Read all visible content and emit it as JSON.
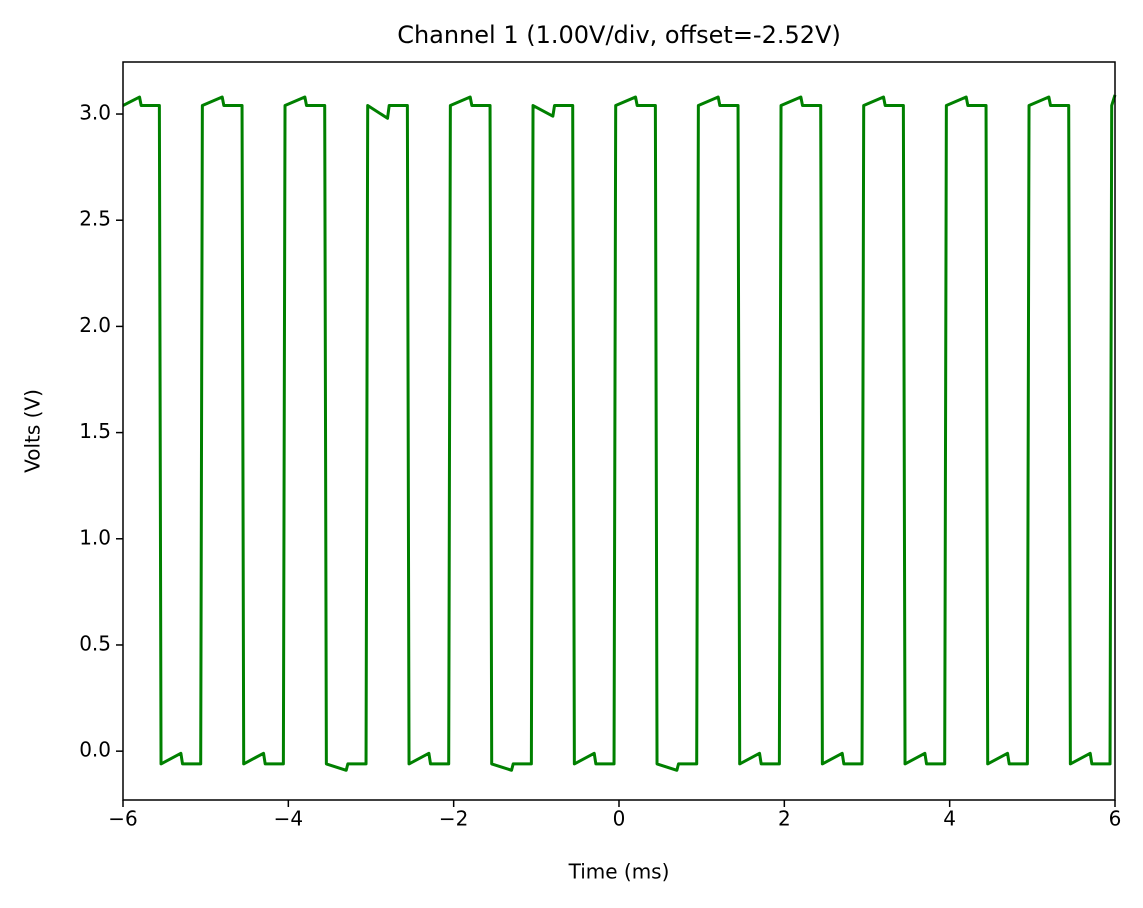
{
  "chart_data": {
    "type": "line",
    "title": "Channel 1 (1.00V/div, offset=-2.52V)",
    "xlabel": "Time (ms)",
    "ylabel": "Volts (V)",
    "x": [
      -6,
      -5.8,
      -5.78,
      -5.56,
      -5.54,
      -5.3,
      -5.28,
      -5.06,
      -5.04,
      -4.8,
      -4.78,
      -4.56,
      -4.54,
      -4.3,
      -4.28,
      -4.06,
      -4.04,
      -3.8,
      -3.78,
      -3.56,
      -3.54,
      -3.3,
      -3.28,
      -3.06,
      -3.04,
      -2.8,
      -2.78,
      -2.56,
      -2.54,
      -2.3,
      -2.28,
      -2.06,
      -2.04,
      -1.8,
      -1.78,
      -1.56,
      -1.54,
      -1.3,
      -1.28,
      -1.06,
      -1.04,
      -0.8,
      -0.78,
      -0.56,
      -0.54,
      -0.3,
      -0.28,
      -0.06,
      -0.04,
      0.2,
      0.22,
      0.44,
      0.46,
      0.7,
      0.72,
      0.94,
      0.96,
      1.2,
      1.22,
      1.44,
      1.46,
      1.7,
      1.72,
      1.94,
      1.96,
      2.2,
      2.22,
      2.44,
      2.46,
      2.7,
      2.72,
      2.94,
      2.96,
      3.2,
      3.22,
      3.44,
      3.46,
      3.7,
      3.72,
      3.94,
      3.96,
      4.2,
      4.22,
      4.44,
      4.46,
      4.7,
      4.72,
      4.94,
      4.96,
      5.2,
      5.22,
      5.44,
      5.46,
      5.7,
      5.72,
      5.94,
      5.96,
      6.0
    ],
    "series": [
      {
        "name": "Channel 1",
        "color": "#008000",
        "values": [
          3.04,
          3.08,
          3.04,
          3.04,
          -0.06,
          -0.01,
          -0.06,
          -0.06,
          3.04,
          3.08,
          3.04,
          3.04,
          -0.06,
          -0.01,
          -0.06,
          -0.06,
          3.04,
          3.08,
          3.04,
          3.04,
          -0.06,
          -0.09,
          -0.06,
          -0.06,
          3.04,
          2.98,
          3.04,
          3.04,
          -0.06,
          -0.01,
          -0.06,
          -0.06,
          3.04,
          3.08,
          3.04,
          3.04,
          -0.06,
          -0.09,
          -0.06,
          -0.06,
          3.04,
          2.99,
          3.04,
          3.04,
          -0.06,
          -0.01,
          -0.06,
          -0.06,
          3.04,
          3.08,
          3.04,
          3.04,
          -0.06,
          -0.09,
          -0.06,
          -0.06,
          3.04,
          3.08,
          3.04,
          3.04,
          -0.06,
          -0.01,
          -0.06,
          -0.06,
          3.04,
          3.08,
          3.04,
          3.04,
          -0.06,
          -0.01,
          -0.06,
          -0.06,
          3.04,
          3.08,
          3.04,
          3.04,
          -0.06,
          -0.01,
          -0.06,
          -0.06,
          3.04,
          3.08,
          3.04,
          3.04,
          -0.06,
          -0.01,
          -0.06,
          -0.06,
          3.04,
          3.08,
          3.04,
          3.04,
          -0.06,
          -0.01,
          -0.06,
          -0.06,
          3.04,
          3.09
        ]
      }
    ],
    "xlim": [
      -6,
      6
    ],
    "xticks": [
      {
        "value": -6,
        "label": "−6"
      },
      {
        "value": -4,
        "label": "−4"
      },
      {
        "value": -2,
        "label": "−2"
      },
      0,
      2,
      4,
      6
    ],
    "ylim": [
      -0.23,
      3.245
    ],
    "yticks": [
      {
        "value": 0,
        "label": "0.0"
      },
      0.5,
      {
        "value": 1,
        "label": "1.0"
      },
      1.5,
      {
        "value": 2,
        "label": "2.0"
      },
      2.5,
      {
        "value": 3,
        "label": "3.0"
      }
    ]
  }
}
